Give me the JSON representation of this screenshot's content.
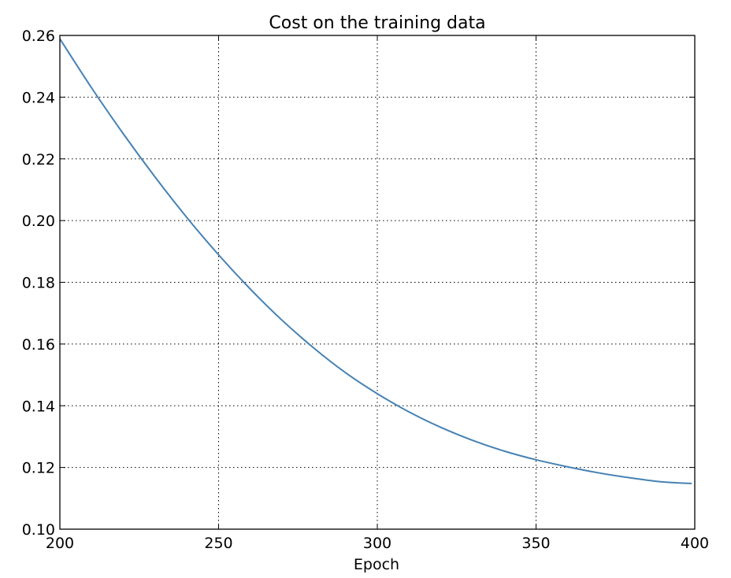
{
  "chart_data": {
    "type": "line",
    "title": "Cost on the training data",
    "xlabel": "Epoch",
    "ylabel": "",
    "xlim": [
      200,
      400
    ],
    "ylim": [
      0.1,
      0.26
    ],
    "xticks": [
      200,
      250,
      300,
      350,
      400
    ],
    "xtick_labels": [
      "200",
      "250",
      "300",
      "350",
      "400"
    ],
    "yticks": [
      0.1,
      0.12,
      0.14,
      0.16,
      0.18,
      0.2,
      0.22,
      0.24,
      0.26
    ],
    "ytick_labels": [
      "0.10",
      "0.12",
      "0.14",
      "0.16",
      "0.18",
      "0.20",
      "0.22",
      "0.24",
      "0.26"
    ],
    "grid": true,
    "legend": "none",
    "series": [
      {
        "color": "#4682b4",
        "x": [
          200,
          210,
          220,
          230,
          240,
          250,
          260,
          270,
          280,
          290,
          300,
          310,
          320,
          330,
          340,
          350,
          360,
          370,
          380,
          390,
          399
        ],
        "y": [
          0.2589,
          0.243,
          0.2281,
          0.2141,
          0.201,
          0.1889,
          0.1778,
          0.1677,
          0.1587,
          0.1507,
          0.1439,
          0.138,
          0.133,
          0.1288,
          0.1253,
          0.1225,
          0.1202,
          0.1182,
          0.1166,
          0.1153,
          0.1148
        ]
      }
    ]
  }
}
